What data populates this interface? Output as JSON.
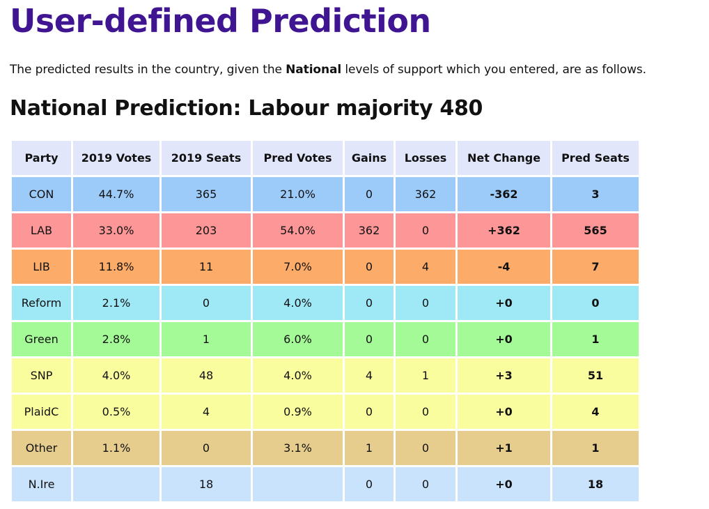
{
  "page": {
    "title": "User-defined Prediction",
    "intro_before": "The predicted results in the country, given the ",
    "intro_bold": "National",
    "intro_after": " levels of support which you entered, are as follows.",
    "subtitle": "National Prediction: Labour majority 480"
  },
  "table": {
    "headers": [
      "Party",
      "2019 Votes",
      "2019 Seats",
      "Pred Votes",
      "Gains",
      "Losses",
      "Net Change",
      "Pred Seats"
    ],
    "header_color": "#e2e6fb",
    "rows": [
      {
        "color": "#9ccbf9",
        "cells": [
          "CON",
          "44.7%",
          "365",
          "21.0%",
          "0",
          "362",
          "-362",
          "3"
        ]
      },
      {
        "color": "#fd9696",
        "cells": [
          "LAB",
          "33.0%",
          "203",
          "54.0%",
          "362",
          "0",
          "+362",
          "565"
        ]
      },
      {
        "color": "#fcac68",
        "cells": [
          "LIB",
          "11.8%",
          "11",
          "7.0%",
          "0",
          "4",
          "-4",
          "7"
        ]
      },
      {
        "color": "#9fe8f6",
        "cells": [
          "Reform",
          "2.1%",
          "0",
          "4.0%",
          "0",
          "0",
          "+0",
          "0"
        ]
      },
      {
        "color": "#a4fa96",
        "cells": [
          "Green",
          "2.8%",
          "1",
          "6.0%",
          "0",
          "0",
          "+0",
          "1"
        ]
      },
      {
        "color": "#fafd9e",
        "cells": [
          "SNP",
          "4.0%",
          "48",
          "4.0%",
          "4",
          "1",
          "+3",
          "51"
        ]
      },
      {
        "color": "#fafd9e",
        "cells": [
          "PlaidC",
          "0.5%",
          "4",
          "0.9%",
          "0",
          "0",
          "+0",
          "4"
        ]
      },
      {
        "color": "#e6cc8d",
        "cells": [
          "Other",
          "1.1%",
          "0",
          "3.1%",
          "1",
          "0",
          "+1",
          "1"
        ]
      },
      {
        "color": "#c9e3fc",
        "cells": [
          "N.Ire",
          "",
          "18",
          "",
          "0",
          "0",
          "+0",
          "18"
        ]
      }
    ]
  },
  "colors": {
    "title": "#3f1592",
    "text": "#111111"
  }
}
